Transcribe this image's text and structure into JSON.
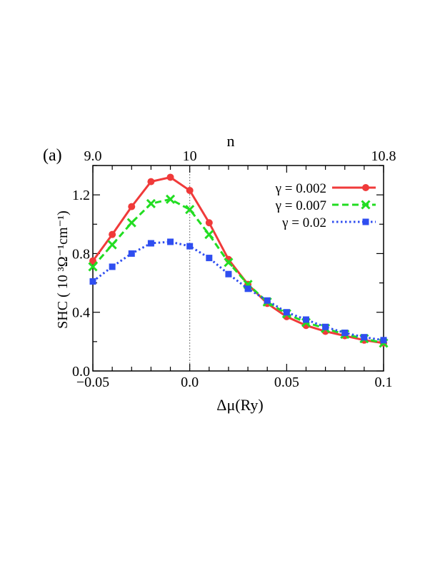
{
  "panel_label": "(a)",
  "chart_data": {
    "type": "line",
    "xlabel": "Δμ(Ry)",
    "ylabel": "SHC ( 10 ³Ω⁻¹cm⁻¹)",
    "top_axis_label": "n",
    "xlim": [
      -0.05,
      0.1
    ],
    "ylim": [
      0.0,
      1.4
    ],
    "x_ticks": [
      -0.05,
      0.0,
      0.05,
      0.1
    ],
    "x_tick_labels": [
      "−0.05",
      "0.0",
      "0.05",
      "0.1"
    ],
    "y_ticks": [
      0.0,
      0.4,
      0.8,
      1.2
    ],
    "y_tick_labels": [
      "0.0",
      "0.4",
      "0.8",
      "1.2"
    ],
    "top_ticks": [
      {
        "x": -0.05,
        "label": "9.0"
      },
      {
        "x": 0.0,
        "label": "10"
      },
      {
        "x": 0.1,
        "label": "10.8"
      }
    ],
    "reference_line_x": 0.0,
    "legend_position": "top-right",
    "x": [
      -0.05,
      -0.04,
      -0.03,
      -0.02,
      -0.01,
      0.0,
      0.01,
      0.02,
      0.03,
      0.04,
      0.05,
      0.06,
      0.07,
      0.08,
      0.09,
      0.1
    ],
    "series": [
      {
        "name": "γ = 0.002",
        "color": "#f03a3a",
        "marker": "circle",
        "dash": "solid",
        "values": [
          0.75,
          0.93,
          1.12,
          1.29,
          1.32,
          1.23,
          1.01,
          0.76,
          0.59,
          0.46,
          0.37,
          0.31,
          0.27,
          0.24,
          0.21,
          0.19
        ]
      },
      {
        "name": "γ = 0.007",
        "color": "#22dd22",
        "marker": "x",
        "dash": "dashed",
        "values": [
          0.71,
          0.86,
          1.01,
          1.14,
          1.17,
          1.1,
          0.93,
          0.74,
          0.59,
          0.47,
          0.39,
          0.33,
          0.29,
          0.25,
          0.22,
          0.19
        ]
      },
      {
        "name": "γ = 0.02",
        "color": "#2f4ef0",
        "marker": "square",
        "dash": "dotted",
        "values": [
          0.61,
          0.71,
          0.8,
          0.87,
          0.88,
          0.85,
          0.77,
          0.66,
          0.56,
          0.48,
          0.4,
          0.35,
          0.3,
          0.26,
          0.23,
          0.21
        ]
      }
    ]
  }
}
